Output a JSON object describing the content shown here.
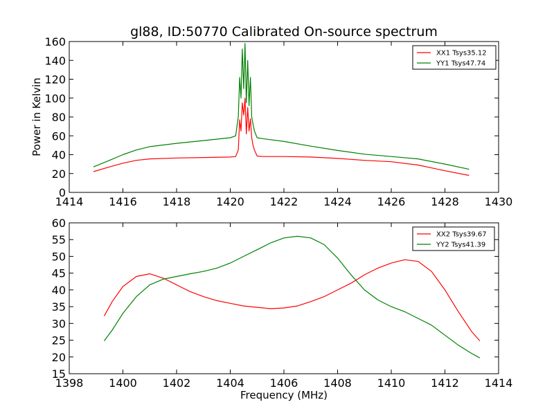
{
  "chart_data": [
    {
      "type": "line",
      "title": "gl88, ID:50770 Calibrated On-source spectrum",
      "xlabel": "",
      "ylabel": "Power in Kelvin",
      "xlim": [
        1414,
        1430
      ],
      "ylim": [
        0,
        160
      ],
      "xticks": [
        1414,
        1416,
        1418,
        1420,
        1422,
        1424,
        1426,
        1428,
        1430
      ],
      "yticks": [
        0,
        20,
        40,
        60,
        80,
        100,
        120,
        140,
        160
      ],
      "legend_position": "top-right",
      "series": [
        {
          "name": "XX1 Tsys35.12",
          "color": "#ff0000",
          "x": [
            1414.9,
            1415.5,
            1416.0,
            1416.5,
            1417.0,
            1418.0,
            1419.0,
            1420.0,
            1420.2,
            1420.3,
            1420.35,
            1420.4,
            1420.45,
            1420.5,
            1420.55,
            1420.6,
            1420.65,
            1420.7,
            1420.75,
            1420.8,
            1420.85,
            1420.9,
            1421.0,
            1421.2,
            1422.0,
            1423.0,
            1424.0,
            1425.0,
            1426.0,
            1427.0,
            1428.0,
            1428.9
          ],
          "y": [
            22,
            27,
            31,
            34,
            35.5,
            36.5,
            37,
            37.5,
            38,
            45,
            77,
            65,
            95,
            82,
            100,
            62,
            90,
            65,
            78,
            58,
            50,
            45,
            38.5,
            38,
            38,
            37.5,
            36,
            34,
            32.5,
            29,
            23,
            18
          ]
        },
        {
          "name": "YY1 Tsys47.74",
          "color": "#008000",
          "x": [
            1414.9,
            1415.5,
            1416.0,
            1416.5,
            1417.0,
            1418.0,
            1419.0,
            1420.0,
            1420.2,
            1420.3,
            1420.35,
            1420.4,
            1420.45,
            1420.5,
            1420.55,
            1420.6,
            1420.65,
            1420.7,
            1420.75,
            1420.8,
            1420.85,
            1420.9,
            1421.0,
            1421.2,
            1422.0,
            1423.0,
            1424.0,
            1425.0,
            1426.0,
            1427.0,
            1428.0,
            1428.9
          ],
          "y": [
            27,
            34,
            40,
            45,
            48.5,
            52,
            55,
            58,
            60,
            80,
            122,
            100,
            152,
            110,
            158,
            95,
            140,
            92,
            122,
            80,
            72,
            65,
            58,
            57,
            54,
            49,
            44.5,
            40.5,
            38,
            35.5,
            30,
            24.5
          ]
        }
      ]
    },
    {
      "type": "line",
      "title": "",
      "xlabel": "Frequency (MHz)",
      "ylabel": "",
      "xlim": [
        1398,
        1414
      ],
      "ylim": [
        15,
        60
      ],
      "xticks": [
        1398,
        1400,
        1402,
        1404,
        1406,
        1408,
        1410,
        1412,
        1414
      ],
      "yticks": [
        15,
        20,
        25,
        30,
        35,
        40,
        45,
        50,
        55,
        60
      ],
      "legend_position": "top-right",
      "series": [
        {
          "name": "XX2 Tsys39.67",
          "color": "#ff0000",
          "x": [
            1399.3,
            1399.6,
            1400.0,
            1400.5,
            1401.0,
            1401.5,
            1402.0,
            1402.5,
            1403.0,
            1403.5,
            1404.0,
            1404.5,
            1405.0,
            1405.5,
            1406.0,
            1406.5,
            1407.0,
            1407.5,
            1408.0,
            1408.5,
            1409.0,
            1409.5,
            1410.0,
            1410.5,
            1411.0,
            1411.5,
            1412.0,
            1412.5,
            1413.0,
            1413.3
          ],
          "y": [
            32.2,
            36.5,
            41,
            44,
            44.8,
            43.5,
            41.5,
            39.5,
            38,
            36.8,
            36,
            35.2,
            34.8,
            34.4,
            34.6,
            35.2,
            36.5,
            38,
            40,
            42,
            44.5,
            46.5,
            48,
            49,
            48.5,
            45.5,
            40,
            33.5,
            27.5,
            24.8
          ]
        },
        {
          "name": "YY2 Tsys41.39",
          "color": "#008000",
          "x": [
            1399.3,
            1399.6,
            1400.0,
            1400.5,
            1401.0,
            1401.5,
            1402.0,
            1402.5,
            1403.0,
            1403.5,
            1404.0,
            1404.5,
            1405.0,
            1405.5,
            1406.0,
            1406.5,
            1407.0,
            1407.5,
            1408.0,
            1408.5,
            1409.0,
            1409.5,
            1410.0,
            1410.5,
            1411.0,
            1411.5,
            1412.0,
            1412.5,
            1413.0,
            1413.3
          ],
          "y": [
            24.8,
            28,
            33,
            38,
            41.5,
            43.2,
            44,
            44.8,
            45.5,
            46.5,
            48,
            50,
            52,
            54,
            55.5,
            56,
            55.5,
            53.5,
            49.5,
            44.5,
            40,
            37,
            35,
            33.5,
            31.5,
            29.5,
            26.5,
            23.5,
            21,
            19.7
          ]
        }
      ]
    }
  ]
}
